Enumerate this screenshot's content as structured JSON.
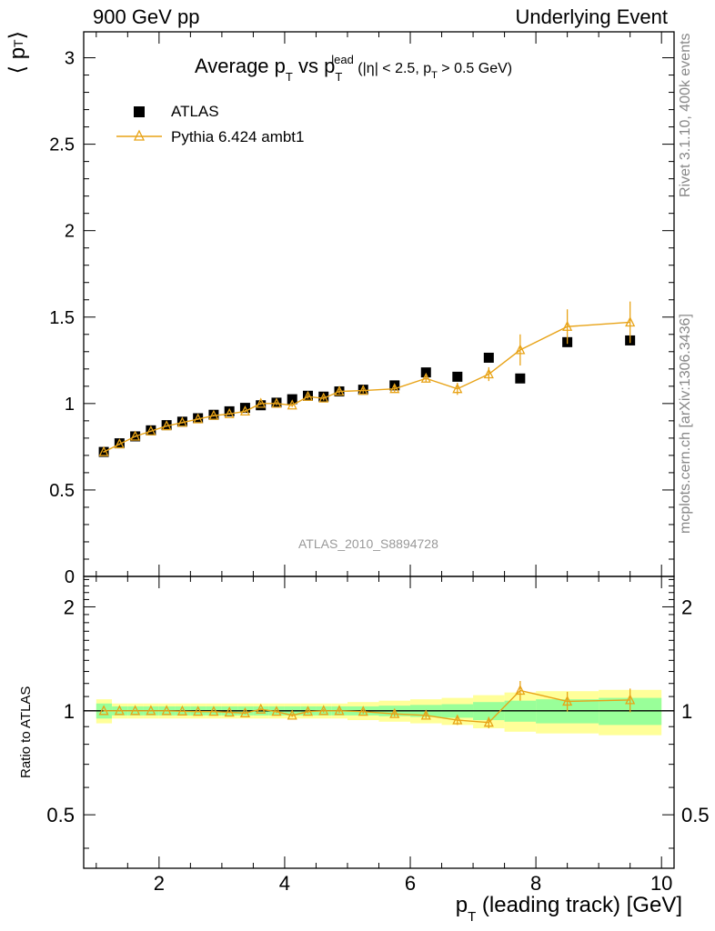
{
  "header": {
    "left": "900 GeV pp",
    "right": "Underlying Event",
    "watermark": "ATLAS_2010_S8894728",
    "rivet": "Rivet 3.1.10,  400k events",
    "mcplots": "mcplots.cern.ch [arXiv:1306.3436]"
  },
  "title": {
    "main": "Average p",
    "main_sub": "T",
    "vs": " vs p",
    "vs_sub": "T",
    "vs_sup": "lead",
    "cut": " (|η| < 2.5, p",
    "cut_sub": "T",
    "cut_end": " > 0.5 GeV)"
  },
  "axes": {
    "ylabel_top": "⟨ p",
    "ylabel_top_sub": "T",
    "ylabel_top_end": "⟩",
    "ylabel_bottom": "Ratio to ATLAS",
    "xlabel": "p",
    "xlabel_sub": "T",
    "xlabel_end": " (leading track) [GeV]"
  },
  "colors": {
    "data": "#000000",
    "mc": "#e8a317",
    "band_inner": "#99ff99",
    "band_outer": "#ffff99"
  },
  "chart_data": [
    {
      "type": "scatter",
      "panel": "main",
      "xlim": [
        0.8,
        10.2
      ],
      "ylim": [
        0,
        3.15
      ],
      "x_ticks": [
        2,
        4,
        6,
        8,
        10
      ],
      "y_ticks": [
        0,
        0.5,
        1,
        1.5,
        2,
        2.5,
        3
      ],
      "y_tick_labels": [
        "0",
        "0.5",
        "1",
        "1.5",
        "2",
        "2.5",
        "3"
      ],
      "legend_position": "top-left",
      "series": [
        {
          "name": "ATLAS",
          "marker": "square",
          "x": [
            1.12,
            1.37,
            1.62,
            1.87,
            2.12,
            2.37,
            2.62,
            2.87,
            3.12,
            3.37,
            3.62,
            3.87,
            4.12,
            4.37,
            4.62,
            4.87,
            5.25,
            5.75,
            6.25,
            6.75,
            7.25,
            7.75,
            8.5,
            9.5
          ],
          "y": [
            0.72,
            0.77,
            0.81,
            0.845,
            0.875,
            0.895,
            0.915,
            0.935,
            0.955,
            0.975,
            0.99,
            1.005,
            1.025,
            1.045,
            1.04,
            1.07,
            1.08,
            1.105,
            1.18,
            1.155,
            1.265,
            1.145,
            1.355,
            1.365
          ]
        },
        {
          "name": "Pythia 6.424 ambt1",
          "marker": "triangle-open",
          "x": [
            1.12,
            1.37,
            1.62,
            1.87,
            2.12,
            2.37,
            2.62,
            2.87,
            3.12,
            3.37,
            3.62,
            3.87,
            4.12,
            4.37,
            4.62,
            4.87,
            5.25,
            5.75,
            6.25,
            6.75,
            7.25,
            7.75,
            8.5,
            9.5
          ],
          "y": [
            0.72,
            0.765,
            0.81,
            0.84,
            0.87,
            0.89,
            0.91,
            0.93,
            0.94,
            0.955,
            1.0,
            1.0,
            0.99,
            1.04,
            1.03,
            1.07,
            1.075,
            1.085,
            1.145,
            1.085,
            1.17,
            1.31,
            1.445,
            1.47
          ],
          "yerr": [
            0.005,
            0.005,
            0.005,
            0.005,
            0.005,
            0.005,
            0.005,
            0.006,
            0.006,
            0.008,
            0.008,
            0.01,
            0.01,
            0.012,
            0.012,
            0.014,
            0.015,
            0.02,
            0.02,
            0.035,
            0.04,
            0.09,
            0.1,
            0.12
          ]
        }
      ]
    },
    {
      "type": "line",
      "panel": "ratio",
      "xlim": [
        0.8,
        10.2
      ],
      "ylim": [
        0.35,
        2.45
      ],
      "y_log": true,
      "x_ticks": [
        2,
        4,
        6,
        8,
        10
      ],
      "x_tick_labels": [
        "2",
        "4",
        "6",
        "8",
        "10"
      ],
      "y_ticks": [
        0.5,
        1,
        2
      ],
      "y_tick_labels": [
        "0.5",
        "1",
        "2"
      ],
      "reference": 1,
      "bins": [
        [
          1.0,
          1.25
        ],
        [
          1.25,
          1.5
        ],
        [
          1.5,
          1.75
        ],
        [
          1.75,
          2.0
        ],
        [
          2.0,
          2.25
        ],
        [
          2.25,
          2.5
        ],
        [
          2.5,
          2.75
        ],
        [
          2.75,
          3.0
        ],
        [
          3.0,
          3.25
        ],
        [
          3.25,
          3.5
        ],
        [
          3.5,
          3.75
        ],
        [
          3.75,
          4.0
        ],
        [
          4.0,
          4.25
        ],
        [
          4.25,
          4.5
        ],
        [
          4.5,
          4.75
        ],
        [
          4.75,
          5.0
        ],
        [
          5.0,
          5.5
        ],
        [
          5.5,
          6.0
        ],
        [
          6.0,
          6.5
        ],
        [
          6.5,
          7.0
        ],
        [
          7.0,
          7.5
        ],
        [
          7.5,
          8.0
        ],
        [
          8.0,
          9.0
        ],
        [
          9.0,
          10.0
        ]
      ],
      "band_inner": [
        0.05,
        0.03,
        0.03,
        0.03,
        0.03,
        0.03,
        0.03,
        0.03,
        0.03,
        0.03,
        0.03,
        0.03,
        0.03,
        0.03,
        0.03,
        0.03,
        0.03,
        0.035,
        0.04,
        0.045,
        0.06,
        0.07,
        0.08,
        0.09
      ],
      "band_outer": [
        0.08,
        0.05,
        0.05,
        0.05,
        0.05,
        0.05,
        0.05,
        0.05,
        0.05,
        0.05,
        0.05,
        0.05,
        0.05,
        0.05,
        0.05,
        0.05,
        0.06,
        0.07,
        0.08,
        0.09,
        0.11,
        0.13,
        0.14,
        0.15
      ],
      "series": [
        {
          "name": "Pythia 6.424 ambt1",
          "x": [
            1.12,
            1.37,
            1.62,
            1.87,
            2.12,
            2.37,
            2.62,
            2.87,
            3.12,
            3.37,
            3.62,
            3.87,
            4.12,
            4.37,
            4.62,
            4.87,
            5.25,
            5.75,
            6.25,
            6.75,
            7.25,
            7.75,
            8.5,
            9.5
          ],
          "y": [
            1.0,
            1.0,
            1.0,
            1.0,
            1.0,
            0.997,
            0.995,
            0.995,
            0.99,
            0.985,
            1.01,
            0.995,
            0.97,
            0.995,
            1.0,
            1.0,
            0.995,
            0.98,
            0.97,
            0.94,
            0.925,
            1.145,
            1.065,
            1.075
          ],
          "yerr": [
            0.005,
            0.005,
            0.005,
            0.005,
            0.005,
            0.005,
            0.005,
            0.006,
            0.006,
            0.008,
            0.008,
            0.01,
            0.01,
            0.012,
            0.012,
            0.014,
            0.015,
            0.018,
            0.018,
            0.03,
            0.035,
            0.075,
            0.07,
            0.085
          ]
        }
      ]
    }
  ]
}
